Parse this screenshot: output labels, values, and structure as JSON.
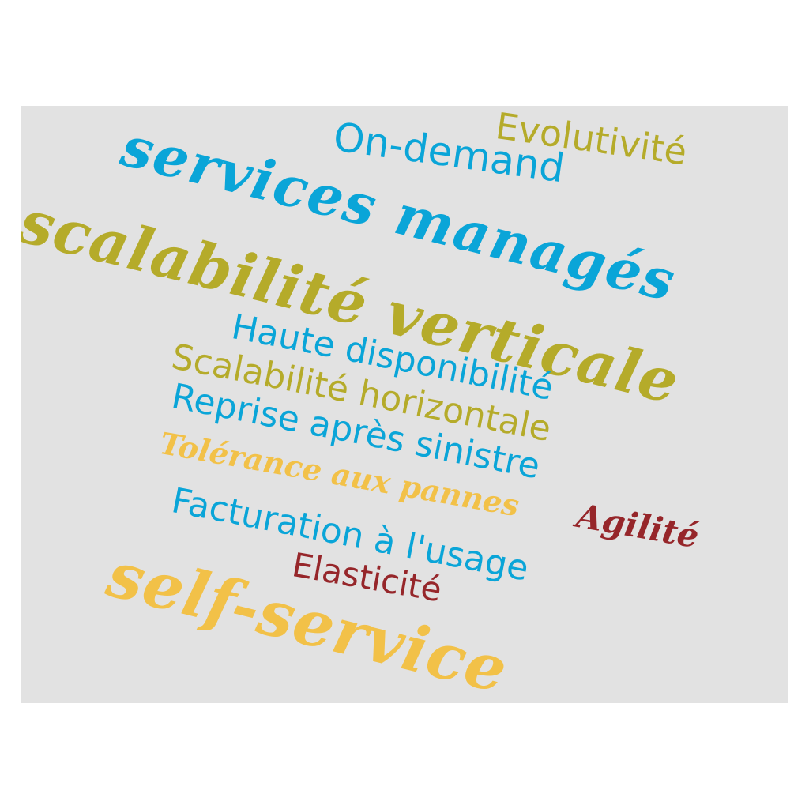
{
  "colors": {
    "background": "#e2e2e2",
    "olive": "#b5ab2a",
    "blue": "#0aa5d8",
    "yellow": "#f2c148",
    "red": "#96262a"
  },
  "words": {
    "evolutivite": "Evolutivité",
    "on_demand": "On-demand",
    "services_manages": "services managés",
    "scalabilite_verticale": "scalabilité verticale",
    "haute_disponibilite": "Haute disponibilité",
    "scalabilite_horizontale": "Scalabilité horizontale",
    "reprise_apres_sinistre": "Reprise après sinistre",
    "tolerance_aux_pannes": "Tolérance aux pannes",
    "facturation_usage": "Facturation à l'usage",
    "agilite": "Agilité",
    "elasticite": "Elasticité",
    "self_service": "self-service"
  },
  "word_colors": {
    "evolutivite": "olive",
    "on_demand": "blue",
    "services_manages": "blue",
    "scalabilite_verticale": "olive",
    "haute_disponibilite": "blue",
    "scalabilite_horizontale": "olive",
    "reprise_apres_sinistre": "blue",
    "tolerance_aux_pannes": "yellow",
    "facturation_usage": "blue",
    "agilite": "red",
    "elasticite": "red",
    "self_service": "yellow"
  }
}
